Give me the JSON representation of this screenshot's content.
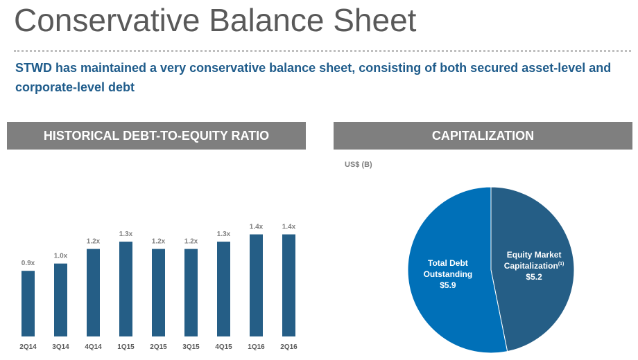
{
  "page": {
    "title": "Conservative Balance Sheet",
    "subtitle": "STWD has maintained a very conservative balance sheet, consisting of both secured asset-level and corporate-level debt"
  },
  "panels": {
    "left_header": "HISTORICAL DEBT-TO-EQUITY RATIO",
    "right_header": "CAPITALIZATION",
    "right_units": "US$ (B)"
  },
  "colors": {
    "bar": "#255e86",
    "debt": "#0070b8",
    "equity": "#255e86",
    "header_bg": "#7f7f7f",
    "subtitle": "#1f5c8b"
  },
  "chart_data": [
    {
      "type": "bar",
      "categories": [
        "2Q14",
        "3Q14",
        "4Q14",
        "1Q15",
        "2Q15",
        "3Q15",
        "4Q15",
        "1Q16",
        "2Q16"
      ],
      "values": [
        0.9,
        1.0,
        1.2,
        1.3,
        1.2,
        1.2,
        1.3,
        1.4,
        1.4
      ],
      "data_labels": [
        "0.9x",
        "1.0x",
        "1.2x",
        "1.3x",
        "1.2x",
        "1.2x",
        "1.3x",
        "1.4x",
        "1.4x"
      ],
      "title": "HISTORICAL DEBT-TO-EQUITY RATIO",
      "ylim": [
        0,
        1.5
      ],
      "grid": false
    },
    {
      "type": "pie",
      "title": "CAPITALIZATION",
      "units": "US$ (B)",
      "slices": [
        {
          "label_lines": [
            "Equity Market",
            "Capitalization"
          ],
          "footnote": "(1)",
          "value": 5.2,
          "value_label": "$5.2",
          "color": "#255e86"
        },
        {
          "label_lines": [
            "Total Debt",
            "Outstanding"
          ],
          "value": 5.9,
          "value_label": "$5.9",
          "color": "#0070b8"
        }
      ]
    }
  ]
}
